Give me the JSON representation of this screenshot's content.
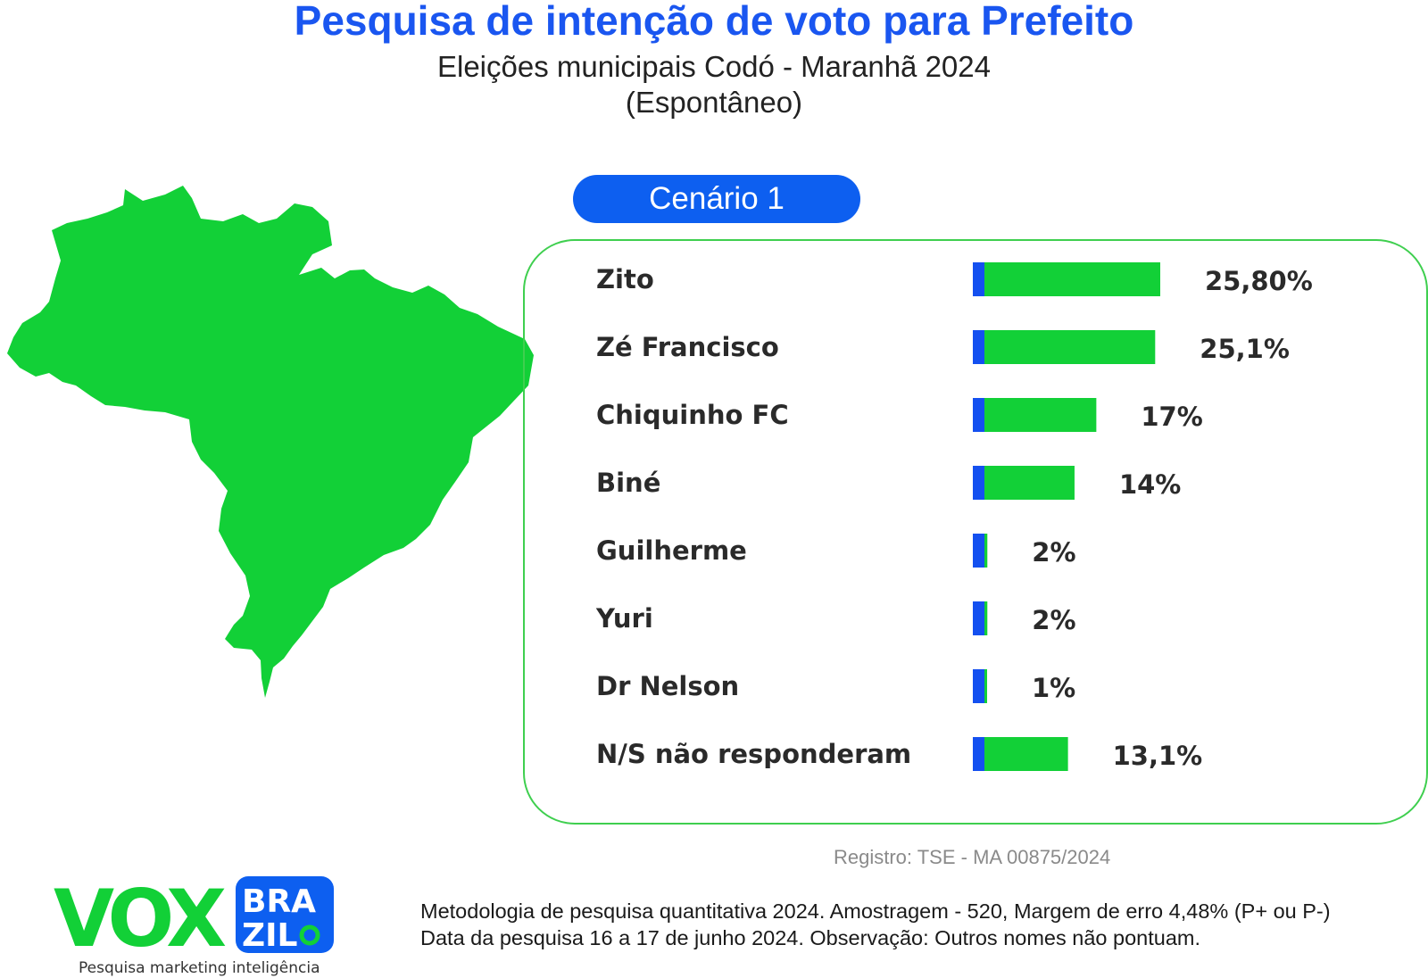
{
  "header": {
    "title": "Pesquisa de intenção de voto para Prefeito",
    "subtitle_1": "Eleições municipais Codó - Maranhã 2024",
    "subtitle_2": "(Espontâneo)"
  },
  "scenario_label": "Cenário 1",
  "colors": {
    "title": "#1a56f0",
    "bar_fill": "#12d037",
    "bar_cap": "#1450f0",
    "panel_border": "#3fcf4f",
    "map": "#12d037",
    "pill": "#0d5ff0"
  },
  "chart_data": {
    "type": "bar",
    "orientation": "horizontal",
    "categories": [
      "Zito",
      "Zé Francisco",
      "Chiquinho FC",
      "Biné",
      "Guilherme",
      "Yuri",
      "Dr Nelson",
      "N/S não responderam"
    ],
    "values": [
      25.8,
      25.1,
      17,
      14,
      2,
      2,
      1,
      13.1
    ],
    "value_labels": [
      "25,80%",
      "25,1%",
      "17%",
      "14%",
      "2%",
      "2%",
      "1%",
      "13,1%"
    ],
    "unit": "%",
    "xlim": [
      0,
      30
    ],
    "grid": false,
    "legend": "none"
  },
  "footer": {
    "registro": "Registro: TSE - MA 00875/2024",
    "methodology_1": "Metodologia de pesquisa quantitativa 2024. Amostragem - 520, Margem de erro 4,48% (P+ ou P-)",
    "methodology_2": "Data da pesquisa 16 a 17 de junho 2024. Observação: Outros nomes não pontuam."
  },
  "logo": {
    "text_main": "VOX",
    "text_top": "BRA",
    "text_bottom": "ZIL",
    "tagline": "Pesquisa marketing inteligência"
  }
}
